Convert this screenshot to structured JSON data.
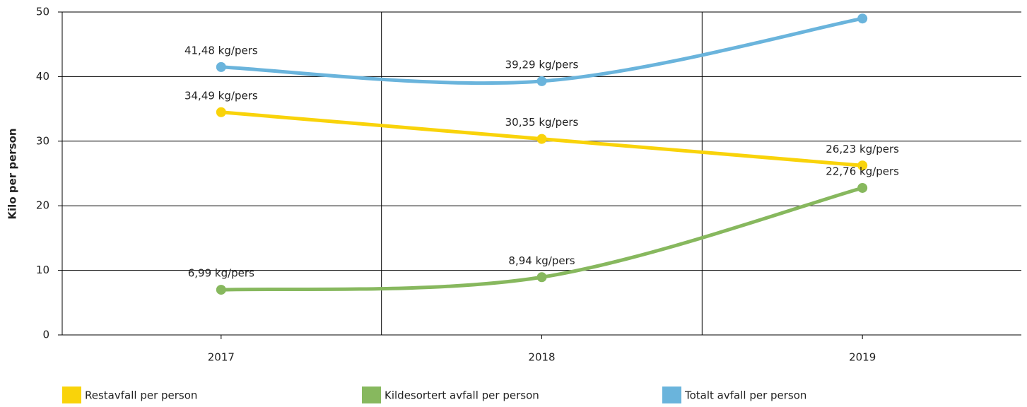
{
  "chart_data": {
    "type": "line",
    "y_label": "Kilo per person",
    "categories": [
      "2017",
      "2018",
      "2019"
    ],
    "series": [
      {
        "name": "Restavfall per person",
        "color": "#f9d30a",
        "values": [
          34.49,
          30.35,
          26.23
        ],
        "value_labels": [
          "34,49 kg/pers",
          "30,35 kg/pers",
          "26,23 kg/pers"
        ]
      },
      {
        "name": "Kildesortert avfall per person",
        "color": "#87b85e",
        "values": [
          6.99,
          8.94,
          22.76
        ],
        "value_labels": [
          "6,99 kg/pers",
          "8,94 kg/pers",
          "22,76 kg/pers"
        ]
      },
      {
        "name": "Totalt avfall per person",
        "color": "#6ab4dc",
        "values": [
          41.48,
          39.29,
          48.99
        ],
        "value_labels": [
          "41,48 kg/pers",
          "39,29 kg/pers",
          null
        ]
      }
    ],
    "ylim": [
      0,
      50
    ],
    "yticks": [
      0,
      10,
      20,
      30,
      40,
      50
    ],
    "grid": true,
    "legend": "bottom",
    "smooth": true
  }
}
